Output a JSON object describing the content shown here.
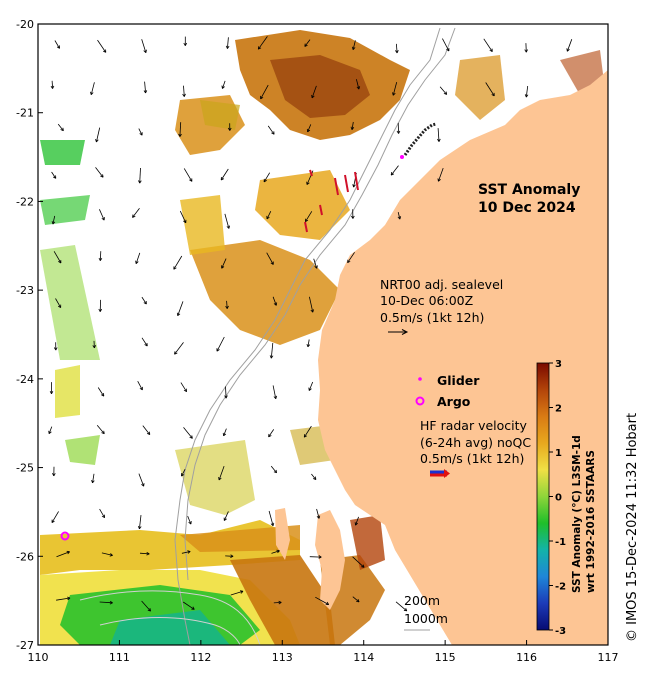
{
  "map": {
    "title_line1": "SST Anomaly",
    "title_line2": "10 Dec 2024",
    "lon_ticks": [
      "110",
      "111",
      "112",
      "113",
      "114",
      "115",
      "116",
      "117"
    ],
    "lat_ticks": [
      "-20",
      "-21",
      "-22",
      "-23",
      "-24",
      "-25",
      "-26",
      "-27"
    ],
    "nrt_line1": "NRT00 adj. sealevel",
    "nrt_line2": "10-Dec 06:00Z",
    "nrt_line3": "0.5m/s (1kt 12h)",
    "glider_label": "Glider",
    "argo_label": "Argo",
    "hf_line1": "HF radar velocity",
    "hf_line2": "(6-24h avg) noQC",
    "hf_line3": "0.5m/s (1kt 12h)",
    "depth_200": "200m",
    "depth_1000": "1000m",
    "credit": "© IMOS 15-Dec-2024 11:32 Hobart",
    "land_color": "#fdc594",
    "glider_color": "#ff00ff",
    "argo_color": "#ff00ff"
  },
  "colorbar": {
    "ticks": [
      "3",
      "2",
      "1",
      "0",
      "-1",
      "-2",
      "-3"
    ],
    "label_line1": "SST Anomaly (°C) L3SM-1d",
    "label_line2": "wrt 1992-2016 SSTAARS",
    "colors": [
      "#7a0a00",
      "#b3440a",
      "#d97b14",
      "#e8a81e",
      "#f0e045",
      "#8fd53a",
      "#1fbf2a",
      "#13b3a8",
      "#1f86d8",
      "#1c3bb8",
      "#070b72"
    ]
  }
}
